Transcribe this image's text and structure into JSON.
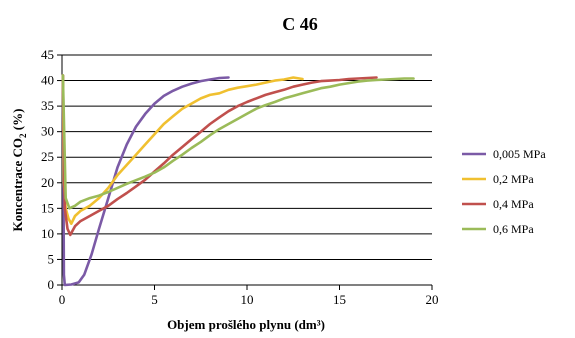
{
  "chart_data": {
    "type": "line",
    "title": "C 46",
    "xlabel": "Objem prošlého plynu (dm³)",
    "ylabel_main": "Koncentrace CO",
    "ylabel_sub": "2",
    "ylabel_tail": " (%)",
    "xlim": [
      0,
      20
    ],
    "ylim": [
      0,
      45
    ],
    "x_ticks": [
      0,
      5,
      10,
      15,
      20
    ],
    "y_ticks": [
      0,
      5,
      10,
      15,
      20,
      25,
      30,
      35,
      40,
      45
    ],
    "x_tick_labels": [
      "0",
      "5",
      "10",
      "15",
      "20"
    ],
    "y_tick_labels": [
      "0",
      "5",
      "10",
      "15",
      "20",
      "25",
      "30",
      "35",
      "40",
      "45"
    ],
    "grid": "horizontal",
    "legend_position": "right",
    "series": [
      {
        "name": "0,005 MPa",
        "color": "#7b5aa6",
        "points": [
          [
            0.05,
            41
          ],
          [
            0.1,
            2
          ],
          [
            0.15,
            0
          ],
          [
            0.5,
            0.1
          ],
          [
            0.9,
            0.5
          ],
          [
            1.2,
            2
          ],
          [
            1.6,
            6
          ],
          [
            2.0,
            11
          ],
          [
            2.5,
            17
          ],
          [
            3.0,
            23
          ],
          [
            3.5,
            27.5
          ],
          [
            4.0,
            31
          ],
          [
            4.5,
            33.5
          ],
          [
            5.0,
            35.5
          ],
          [
            5.5,
            37
          ],
          [
            6.0,
            38
          ],
          [
            6.5,
            38.8
          ],
          [
            7.0,
            39.4
          ],
          [
            7.5,
            39.9
          ],
          [
            8.0,
            40.2
          ],
          [
            8.5,
            40.5
          ],
          [
            9.0,
            40.6
          ]
        ]
      },
      {
        "name": "0,2 MPa",
        "color": "#f0c030",
        "points": [
          [
            0.05,
            41
          ],
          [
            0.1,
            20
          ],
          [
            0.2,
            15
          ],
          [
            0.35,
            13
          ],
          [
            0.5,
            12
          ],
          [
            0.7,
            13.5
          ],
          [
            1.0,
            14.5
          ],
          [
            1.5,
            15.5
          ],
          [
            2.0,
            17
          ],
          [
            2.5,
            19
          ],
          [
            3.0,
            21.5
          ],
          [
            3.5,
            23.5
          ],
          [
            4.0,
            25.5
          ],
          [
            4.5,
            27.5
          ],
          [
            5.0,
            29.5
          ],
          [
            5.5,
            31.5
          ],
          [
            6.0,
            33
          ],
          [
            6.5,
            34.5
          ],
          [
            7.0,
            35.5
          ],
          [
            7.5,
            36.5
          ],
          [
            8.0,
            37.2
          ],
          [
            8.5,
            37.5
          ],
          [
            9.0,
            38.2
          ],
          [
            9.5,
            38.6
          ],
          [
            10.0,
            38.9
          ],
          [
            10.5,
            39.2
          ],
          [
            11.0,
            39.6
          ],
          [
            11.5,
            40.0
          ],
          [
            12.0,
            40.2
          ],
          [
            12.5,
            40.6
          ],
          [
            13.0,
            40.3
          ]
        ]
      },
      {
        "name": "0,4 MPa",
        "color": "#c0504d",
        "points": [
          [
            0.05,
            41
          ],
          [
            0.15,
            15
          ],
          [
            0.3,
            11
          ],
          [
            0.45,
            9.8
          ],
          [
            0.7,
            11.5
          ],
          [
            1.0,
            12.5
          ],
          [
            1.5,
            13.5
          ],
          [
            2.0,
            14.5
          ],
          [
            2.5,
            15.5
          ],
          [
            3.0,
            16.8
          ],
          [
            3.5,
            18
          ],
          [
            4.0,
            19.3
          ],
          [
            4.5,
            20.6
          ],
          [
            5.0,
            22.2
          ],
          [
            5.5,
            23.8
          ],
          [
            6.0,
            25.5
          ],
          [
            6.5,
            27
          ],
          [
            7.0,
            28.5
          ],
          [
            7.5,
            30
          ],
          [
            8.0,
            31.5
          ],
          [
            8.5,
            32.8
          ],
          [
            9.0,
            34
          ],
          [
            9.5,
            35
          ],
          [
            10.0,
            35.8
          ],
          [
            10.5,
            36.5
          ],
          [
            11.0,
            37.2
          ],
          [
            11.5,
            37.7
          ],
          [
            12.0,
            38.2
          ],
          [
            12.5,
            38.8
          ],
          [
            13.0,
            39.2
          ],
          [
            13.5,
            39.6
          ],
          [
            14.0,
            39.9
          ],
          [
            14.5,
            40.0
          ],
          [
            15.0,
            40.1
          ],
          [
            15.5,
            40.3
          ],
          [
            16.0,
            40.4
          ],
          [
            16.5,
            40.5
          ],
          [
            17.0,
            40.6
          ]
        ]
      },
      {
        "name": "0,6 MPa",
        "color": "#9bbb59",
        "points": [
          [
            0.05,
            41
          ],
          [
            0.2,
            17
          ],
          [
            0.4,
            15
          ],
          [
            0.7,
            15.5
          ],
          [
            1.0,
            16.3
          ],
          [
            1.5,
            17
          ],
          [
            2.0,
            17.5
          ],
          [
            2.5,
            18.2
          ],
          [
            3.0,
            19
          ],
          [
            3.5,
            19.8
          ],
          [
            4.0,
            20.5
          ],
          [
            4.5,
            21.2
          ],
          [
            5.0,
            22
          ],
          [
            5.5,
            23
          ],
          [
            6.0,
            24.3
          ],
          [
            6.5,
            25.5
          ],
          [
            7.0,
            26.8
          ],
          [
            7.5,
            28
          ],
          [
            8.0,
            29.3
          ],
          [
            8.5,
            30.5
          ],
          [
            9.0,
            31.5
          ],
          [
            9.5,
            32.5
          ],
          [
            10.0,
            33.5
          ],
          [
            10.5,
            34.5
          ],
          [
            11.0,
            35.2
          ],
          [
            11.5,
            35.8
          ],
          [
            12.0,
            36.5
          ],
          [
            12.5,
            37
          ],
          [
            13.0,
            37.5
          ],
          [
            13.5,
            38
          ],
          [
            14.0,
            38.5
          ],
          [
            14.5,
            38.8
          ],
          [
            15.0,
            39.2
          ],
          [
            15.5,
            39.5
          ],
          [
            16.0,
            39.8
          ],
          [
            16.5,
            40.0
          ],
          [
            17.0,
            40.1
          ],
          [
            17.5,
            40.2
          ],
          [
            18.0,
            40.3
          ],
          [
            18.5,
            40.4
          ],
          [
            19.0,
            40.4
          ]
        ]
      }
    ]
  }
}
